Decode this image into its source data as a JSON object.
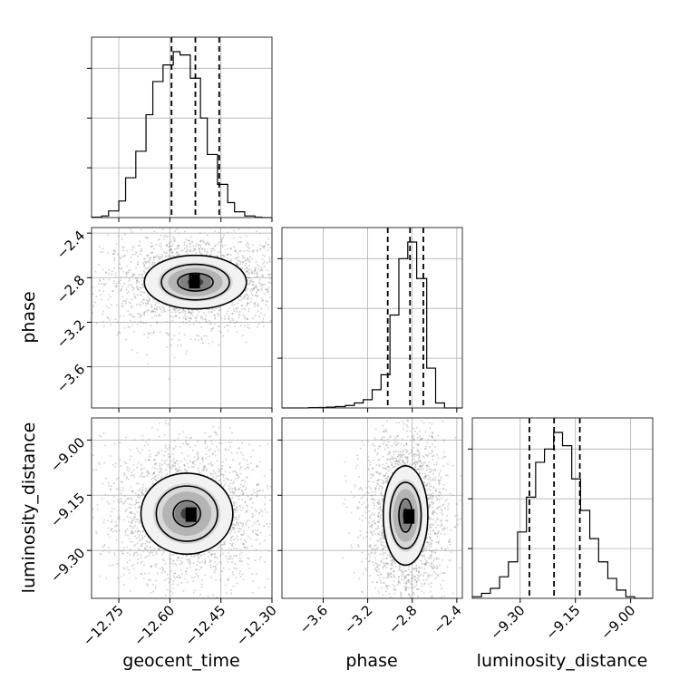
{
  "chart_data": {
    "type": "corner",
    "parameters": [
      "geocent_time",
      "phase",
      "luminosity_distance"
    ],
    "grid": true,
    "ranges": {
      "geocent_time": [
        -12.83,
        -12.3
      ],
      "phase": [
        -3.97,
        -2.35
      ],
      "luminosity_distance": [
        -9.43,
        -8.94
      ]
    },
    "ticks": {
      "geocent_time": [
        -12.75,
        -12.6,
        -12.45,
        -12.3
      ],
      "phase": [
        -3.6,
        -3.2,
        -2.8,
        -2.4
      ],
      "luminosity_distance": [
        -9.3,
        -9.15,
        -9.0
      ]
    },
    "tick_labels": {
      "geocent_time": [
        "−12.75",
        "−12.60",
        "−12.45",
        "−12.30"
      ],
      "phase": [
        "−3.6",
        "−3.2",
        "−2.8",
        "−2.4"
      ],
      "luminosity_distance": [
        "−9.30",
        "−9.15",
        "−9.00"
      ]
    },
    "axis_labels": {
      "geocent_time": "geocent_time",
      "phase": "phase",
      "luminosity_distance": "luminosity_distance"
    },
    "quantiles": {
      "geocent_time": [
        -12.595,
        -12.525,
        -12.455
      ],
      "phase": [
        -3.02,
        -2.82,
        -2.7
      ],
      "luminosity_distance": [
        -9.275,
        -9.208,
        -9.138
      ]
    },
    "histograms": {
      "geocent_time": {
        "edges": [
          -12.83,
          -12.8,
          -12.78,
          -12.75,
          -12.73,
          -12.7,
          -12.67,
          -12.65,
          -12.62,
          -12.59,
          -12.57,
          -12.54,
          -12.51,
          -12.49,
          -12.46,
          -12.43,
          -12.41,
          -12.38,
          -12.35,
          -12.33,
          -12.3
        ],
        "counts": [
          0.003,
          0.01,
          0.04,
          0.1,
          0.24,
          0.4,
          0.62,
          0.82,
          0.92,
          1.0,
          0.98,
          0.84,
          0.6,
          0.38,
          0.2,
          0.09,
          0.035,
          0.01,
          0.003,
          0.0
        ]
      },
      "phase": {
        "edges": [
          -3.97,
          -3.89,
          -3.81,
          -3.73,
          -3.65,
          -3.57,
          -3.49,
          -3.4,
          -3.32,
          -3.24,
          -3.16,
          -3.08,
          -3.0,
          -2.92,
          -2.84,
          -2.76,
          -2.67,
          -2.59,
          -2.51,
          -2.43,
          -2.35
        ],
        "counts": [
          0.0,
          0.0,
          0.0,
          0.002,
          0.003,
          0.005,
          0.008,
          0.015,
          0.03,
          0.05,
          0.11,
          0.2,
          0.56,
          0.9,
          1.0,
          0.78,
          0.24,
          0.03,
          0.0,
          0.0
        ]
      },
      "luminosity_distance": {
        "edges": [
          -9.43,
          -9.405,
          -9.381,
          -9.356,
          -9.332,
          -9.307,
          -9.283,
          -9.258,
          -9.234,
          -9.209,
          -9.185,
          -9.16,
          -9.136,
          -9.111,
          -9.087,
          -9.062,
          -9.038,
          -9.013,
          -8.989,
          -8.964,
          -8.94
        ],
        "counts": [
          0.01,
          0.03,
          0.06,
          0.13,
          0.22,
          0.4,
          0.61,
          0.82,
          0.9,
          1.0,
          0.92,
          0.72,
          0.53,
          0.36,
          0.22,
          0.12,
          0.05,
          0.01,
          0.0,
          0.0
        ]
      }
    },
    "joint_2d": [
      {
        "x": "geocent_time",
        "y": "phase",
        "center": [
          -12.525,
          -2.84
        ],
        "contour_sigma": [
          [
            0.052,
            0.08
          ],
          [
            0.1,
            0.16
          ],
          [
            0.15,
            0.24
          ]
        ],
        "peak": [
          -12.525,
          -2.84
        ]
      },
      {
        "x": "geocent_time",
        "y": "luminosity_distance",
        "center": [
          -12.55,
          -9.2
        ],
        "contour_sigma": [
          [
            0.04,
            0.035
          ],
          [
            0.09,
            0.075
          ],
          [
            0.135,
            0.11
          ]
        ],
        "peak": [
          -12.535,
          -9.205
        ]
      },
      {
        "x": "phase",
        "y": "luminosity_distance",
        "center": [
          -2.86,
          -9.205
        ],
        "contour_sigma": [
          [
            0.06,
            0.045
          ],
          [
            0.14,
            0.09
          ],
          [
            0.2,
            0.135
          ]
        ],
        "peak": [
          -2.82,
          -9.21
        ]
      }
    ]
  }
}
